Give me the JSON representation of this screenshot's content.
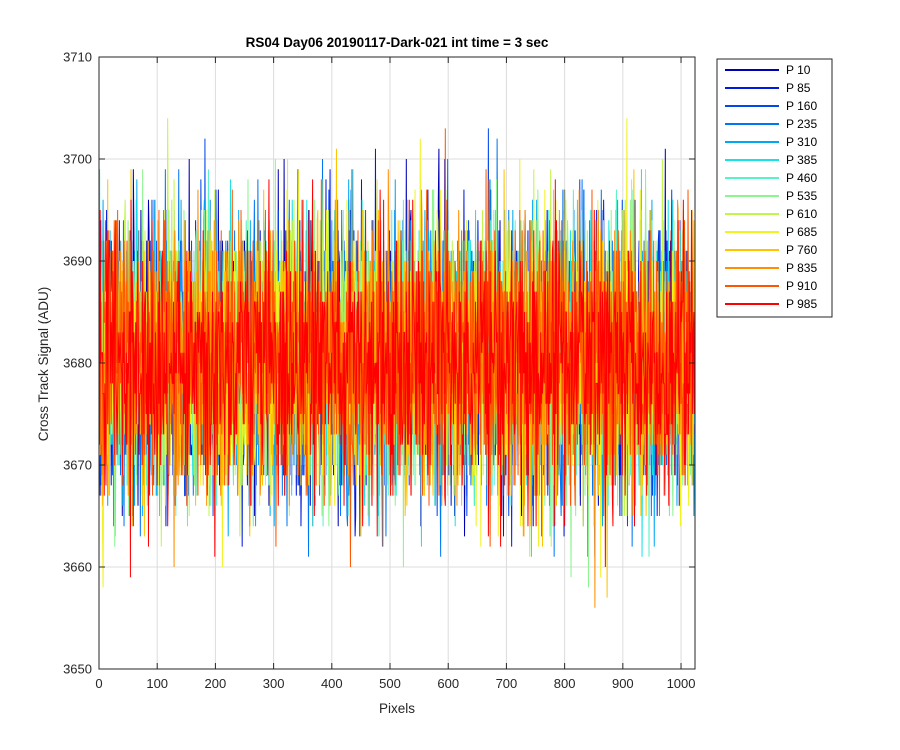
{
  "chart_data": {
    "type": "line",
    "title": "RS04 Day06 20190117-Dark-021 int time = 3 sec",
    "xlabel": "Pixels",
    "ylabel": "Cross Track Signal (ADU)",
    "xlim": [
      0,
      1024
    ],
    "ylim": [
      3650,
      3710
    ],
    "xticks": [
      0,
      100,
      200,
      300,
      400,
      500,
      600,
      700,
      800,
      900,
      1000
    ],
    "yticks": [
      3650,
      3660,
      3670,
      3680,
      3690,
      3700,
      3710
    ],
    "grid": true,
    "legend_position": "outside-top-right",
    "noise_model": {
      "mean": 3680.5,
      "std_dev": 6.5,
      "min": 3650,
      "max": 3710,
      "points_per_series": 1024
    },
    "series": [
      {
        "name": "P 10",
        "color": "#0000b3"
      },
      {
        "name": "P 85",
        "color": "#0019dd"
      },
      {
        "name": "P 160",
        "color": "#0047ee"
      },
      {
        "name": "P 235",
        "color": "#0077f2"
      },
      {
        "name": "P 310",
        "color": "#00a8f2"
      },
      {
        "name": "P 385",
        "color": "#19e2e6"
      },
      {
        "name": "P 460",
        "color": "#56f2c9"
      },
      {
        "name": "P 535",
        "color": "#8cf58f"
      },
      {
        "name": "P 610",
        "color": "#c2f54a"
      },
      {
        "name": "P 685",
        "color": "#f2f21e"
      },
      {
        "name": "P 760",
        "color": "#ffc300"
      },
      {
        "name": "P 835",
        "color": "#ff8f00"
      },
      {
        "name": "P 910",
        "color": "#ff5500"
      },
      {
        "name": "P 985",
        "color": "#ff0000"
      }
    ]
  }
}
